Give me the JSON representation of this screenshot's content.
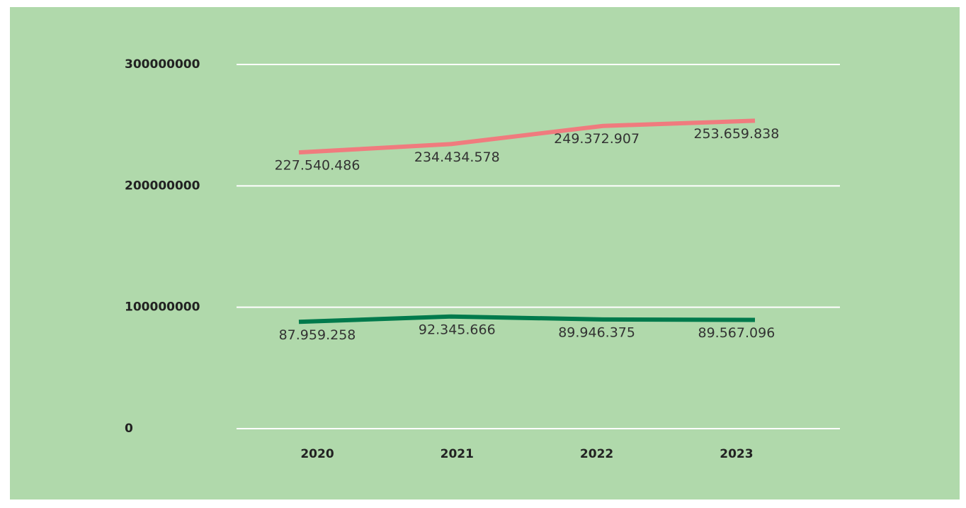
{
  "chart_data": {
    "type": "line",
    "categories": [
      "2020",
      "2021",
      "2022",
      "2023"
    ],
    "series": [
      {
        "color": "#f07b7e",
        "values": [
          227540486,
          234434578,
          249372907,
          253659838
        ],
        "value_labels": [
          "227.540.486",
          "234.434.578",
          "249.372.907",
          "253.659.838"
        ]
      },
      {
        "color": "#007a4c",
        "values": [
          87959258,
          92345666,
          89946375,
          89567096
        ],
        "value_labels": [
          "87.959.258",
          "92.345.666",
          "89.946.375",
          "89.567.096"
        ]
      }
    ],
    "ylim": [
      0,
      300000000
    ],
    "yticks": [
      0,
      100000000,
      200000000,
      300000000
    ],
    "grid": true,
    "background": "#b0d9ab"
  }
}
